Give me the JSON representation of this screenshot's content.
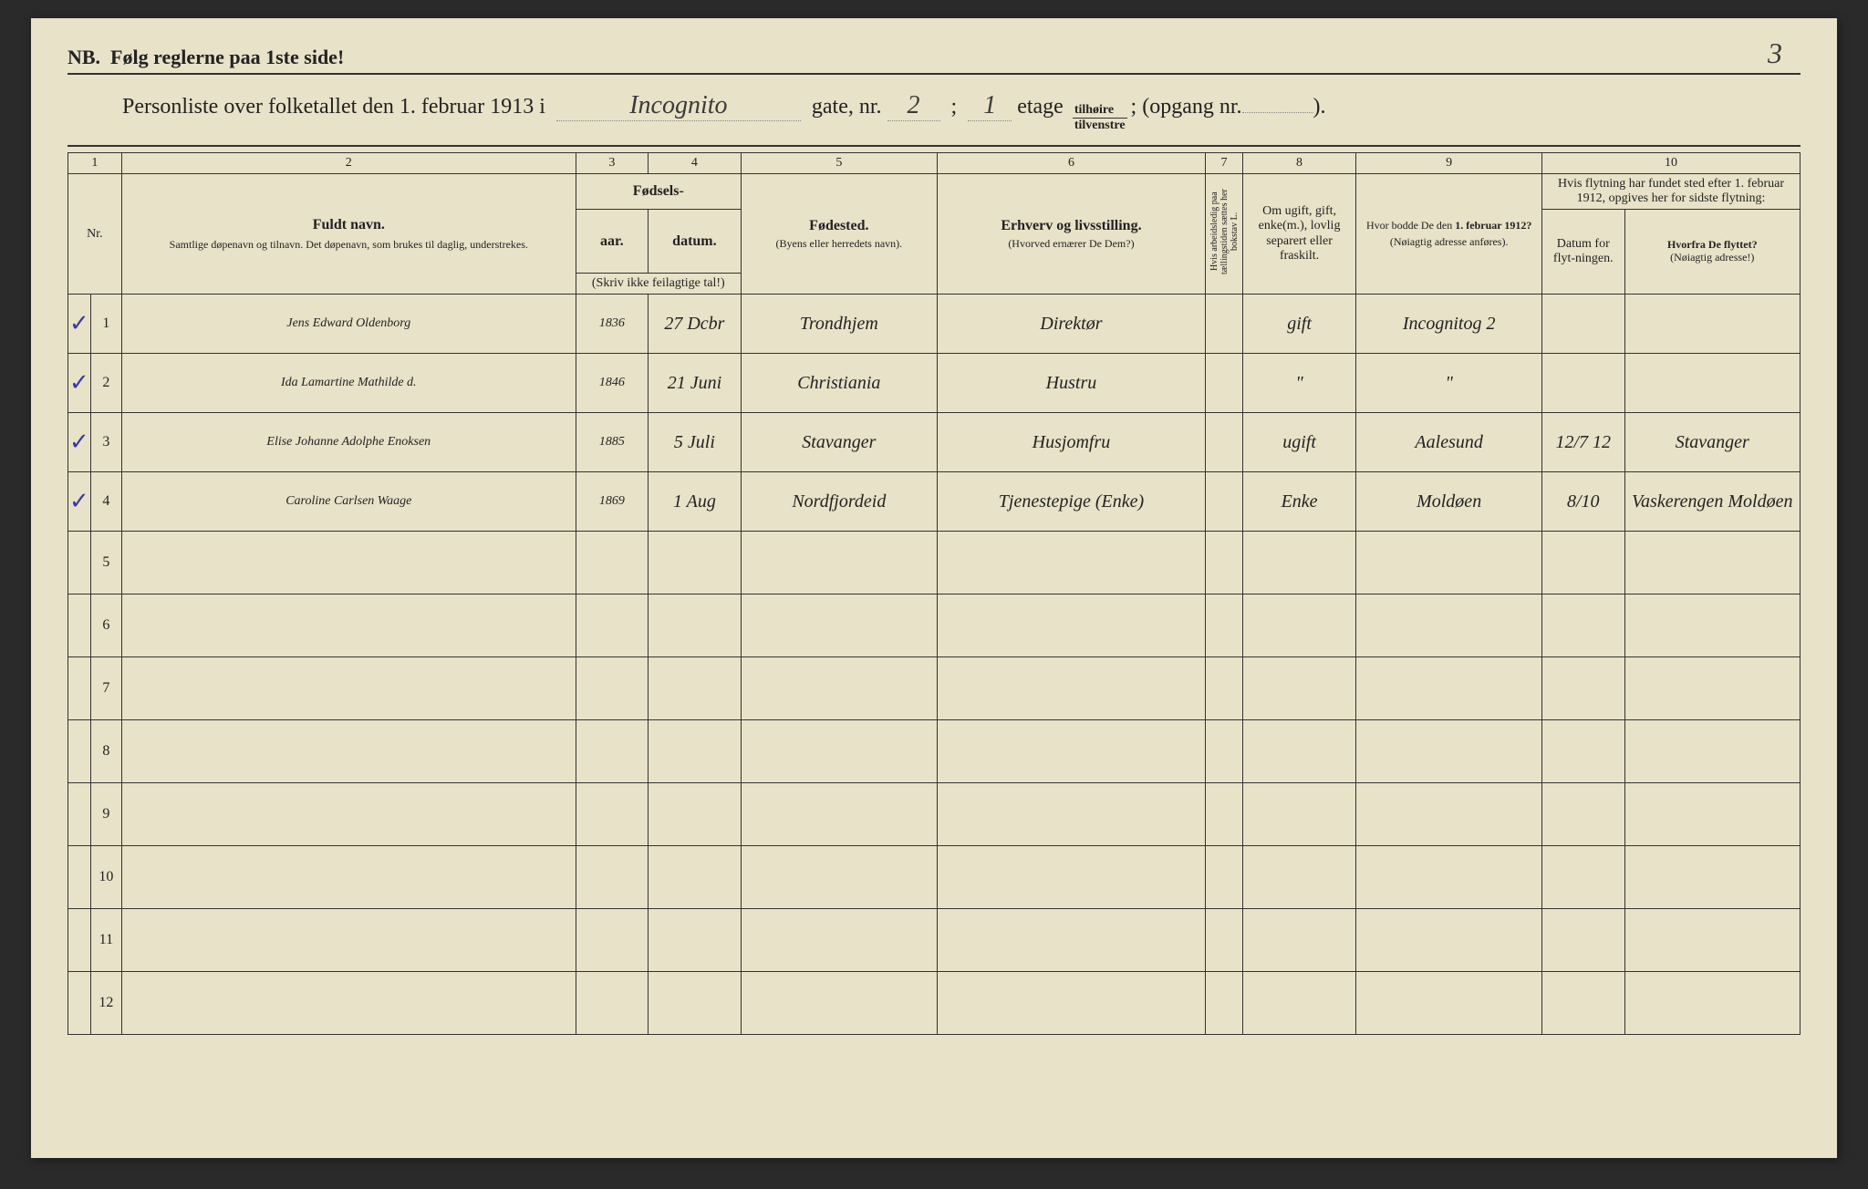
{
  "page_number": "3",
  "nb_text": "NB.  Følg reglerne paa 1ste side!",
  "header": {
    "prefix": "Personliste over folketallet den 1. februar 1913 i",
    "street": "Incognito",
    "gate_label": "gate, nr.",
    "gate_nr": "2",
    "semicolon": ";",
    "etage_nr": "1",
    "etage_label": "etage",
    "frac_top": "tilhøire",
    "frac_bot": "tilvenstre",
    "opgang_label": "; (opgang nr.",
    "opgang_nr": "",
    "closing": ")."
  },
  "colnums": [
    "1",
    "2",
    "3",
    "4",
    "5",
    "6",
    "7",
    "8",
    "9",
    "10"
  ],
  "headers": {
    "nr": "Nr.",
    "name_title": "Fuldt navn.",
    "name_sub": "Samtlige døpenavn og tilnavn. Det døpenavn, som brukes til daglig, understrekes.",
    "birth_group": "Fødsels-",
    "birth_year": "aar.",
    "birth_date": "datum.",
    "birth_note": "(Skriv ikke feilagtige tal!)",
    "birthplace_title": "Fødested.",
    "birthplace_sub": "(Byens eller herredets navn).",
    "occ_title": "Erhverv og livsstilling.",
    "occ_sub": "(Hvorved ernærer De Dem?)",
    "col7": "Hvis arbeidsledig paa tællingstiden sættes her bokstav L.",
    "col8": "Om ugift, gift, enke(m.), lovlig separert eller fraskilt.",
    "col9_title": "Hvor bodde De den 1. februar 1912?",
    "col9_sub": "(Nøiagtig adresse anføres).",
    "col10_title": "Hvis flytning har fundet sted efter 1. februar 1912, opgives her for sidste flytning:",
    "col10a": "Datum for flyt-ningen.",
    "col10b_title": "Hvorfra De flyttet?",
    "col10b_sub": "(Nøiagtig adresse!)"
  },
  "rows": [
    {
      "check": "✓",
      "name": "Jens Edward Oldenborg",
      "year": "1836",
      "date": "27 Dcbr",
      "place": "Trondhjem",
      "occ": "Direktør",
      "col7": "",
      "status": "gift",
      "addr1912": "Incognitog 2",
      "moved_date": "",
      "moved_from": ""
    },
    {
      "check": "✓",
      "name": "Ida Lamartine Mathilde d.",
      "year": "1846",
      "date": "21 Juni",
      "place": "Christiania",
      "occ": "Hustru",
      "col7": "",
      "status": "\"",
      "addr1912": "\"",
      "moved_date": "",
      "moved_from": ""
    },
    {
      "check": "✓",
      "name": "Elise Johanne Adolphe Enoksen",
      "year": "1885",
      "date": "5 Juli",
      "place": "Stavanger",
      "occ": "Husjomfru",
      "col7": "",
      "status": "ugift",
      "addr1912": "Aalesund",
      "moved_date": "12/7 12",
      "moved_from": "Stavanger"
    },
    {
      "check": "✓",
      "name": "Caroline Carlsen Waage",
      "year": "1869",
      "date": "1 Aug",
      "place": "Nordfjordeid",
      "occ": "Tjenestepige (Enke)",
      "col7": "",
      "status": "Enke",
      "addr1912": "Moldøen",
      "moved_date": "8/10",
      "moved_from": "Vaskerengen Moldøen"
    }
  ],
  "empty_nrs": [
    "5",
    "6",
    "7",
    "8",
    "9",
    "10",
    "11",
    "12"
  ]
}
